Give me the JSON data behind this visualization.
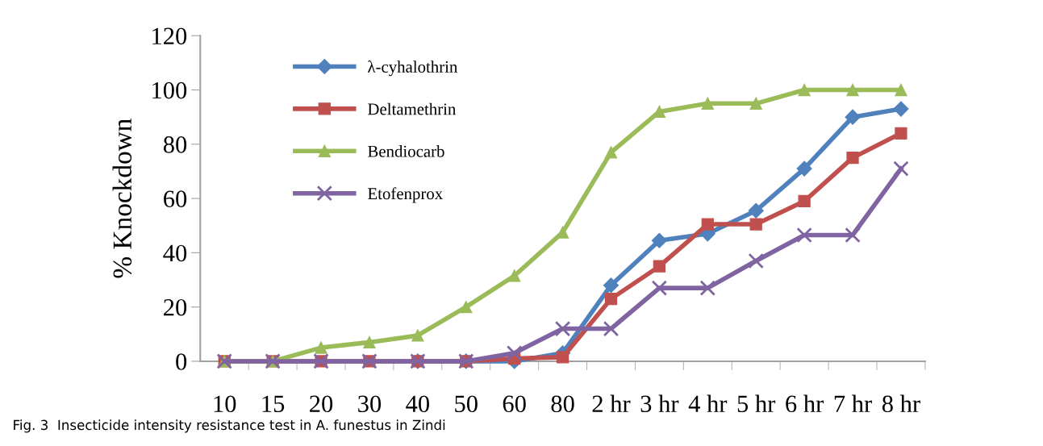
{
  "chart_data": {
    "type": "line",
    "ylabel": "% Knockdown",
    "categories": [
      "10",
      "15",
      "20",
      "30",
      "40",
      "50",
      "60",
      "80",
      "2 hr",
      "3 hr",
      "4 hr",
      "5 hr",
      "6 hr",
      "7 hr",
      "8 hr"
    ],
    "series": [
      {
        "name": "λ-cyhalothrin",
        "color": "#4f81bd",
        "marker": "diamond",
        "values": [
          null,
          null,
          null,
          null,
          0,
          0,
          0,
          3,
          28,
          44.5,
          47,
          55.5,
          71,
          90,
          93
        ]
      },
      {
        "name": "Deltamethrin",
        "color": "#c0504d",
        "marker": "square",
        "values": [
          0,
          0,
          0,
          0,
          0,
          0,
          1,
          1.5,
          23,
          35,
          50.5,
          50.5,
          59,
          75,
          84
        ]
      },
      {
        "name": "Bendiocarb",
        "color": "#9bbb59",
        "marker": "triangle",
        "values": [
          0,
          0,
          5,
          7,
          9.5,
          20,
          31.5,
          47.5,
          77,
          92,
          95,
          95,
          100,
          100,
          100
        ]
      },
      {
        "name": "Etofenprox",
        "color": "#8064a2",
        "marker": "cross",
        "values": [
          0,
          0,
          0,
          0,
          0,
          0,
          3,
          12,
          12,
          27,
          27,
          37,
          46.5,
          46.5,
          71
        ]
      }
    ],
    "ylim": [
      0,
      120
    ],
    "yticks": [
      0,
      20,
      40,
      60,
      80,
      100,
      120
    ],
    "grid": false,
    "legend": "top left",
    "annotations": [
      "Fig. 3  Insecticide intensity resistance test in A. funestus in Zindi"
    ]
  }
}
